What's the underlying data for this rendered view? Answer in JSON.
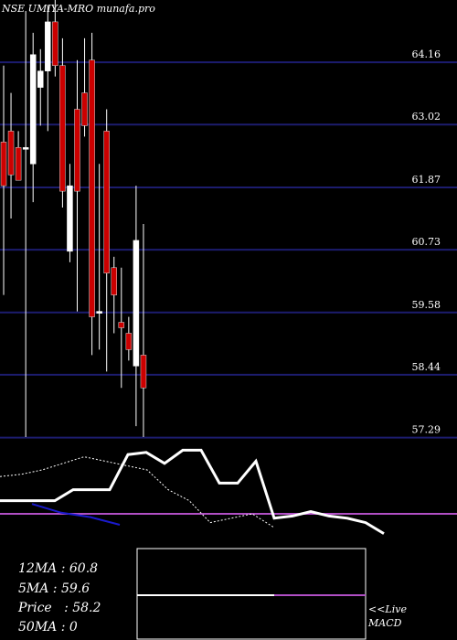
{
  "header": {
    "title": "NSE UMIYA-MRO munafa.pro"
  },
  "colors": {
    "background": "#000000",
    "gridline": "#1c1c6e",
    "bear_candle": "#cc0000",
    "bull_candle": "#ffffff",
    "wick": "#ffffff",
    "macd_line": "#ffffff",
    "signal_line": "#ffffff",
    "short_ma_line": "#1a1acc",
    "zero_line": "#b04fc4"
  },
  "indicators": {
    "ma12": "12MA : 60.8",
    "ma5": "5MA : 59.6",
    "price": "Price   : 58.2",
    "ma50": "50MA : 0"
  },
  "panel": {
    "live_label": "<<Live",
    "macd_label": "MACD"
  },
  "chart_data": {
    "type": "candlestick",
    "title": "NSE UMIYA-MRO munafa.pro",
    "y_ticks": [
      64.16,
      63.02,
      61.87,
      60.73,
      59.58,
      58.44,
      57.29
    ],
    "ylim": [
      57.2,
      65.3
    ],
    "candles": [
      {
        "open": 62.7,
        "high": 64.1,
        "low": 59.9,
        "close": 61.9
      },
      {
        "open": 62.9,
        "high": 63.6,
        "low": 61.3,
        "close": 62.1
      },
      {
        "open": 62.6,
        "high": 62.9,
        "low": 62.0,
        "close": 62.0
      },
      {
        "open": 62.6,
        "high": 65.1,
        "low": 57.3,
        "close": 62.6
      },
      {
        "open": 62.3,
        "high": 64.7,
        "low": 61.6,
        "close": 64.3
      },
      {
        "open": 63.7,
        "high": 64.4,
        "low": 63.0,
        "close": 64.0
      },
      {
        "open": 64.0,
        "high": 65.2,
        "low": 62.9,
        "close": 64.9
      },
      {
        "open": 64.9,
        "high": 65.3,
        "low": 63.9,
        "close": 64.1
      },
      {
        "open": 64.1,
        "high": 64.6,
        "low": 61.5,
        "close": 61.8
      },
      {
        "open": 60.7,
        "high": 62.3,
        "low": 60.5,
        "close": 61.9
      },
      {
        "open": 63.3,
        "high": 64.2,
        "low": 59.6,
        "close": 61.8
      },
      {
        "open": 63.6,
        "high": 64.6,
        "low": 62.8,
        "close": 63.0
      },
      {
        "open": 64.2,
        "high": 64.7,
        "low": 58.8,
        "close": 59.5
      },
      {
        "open": 59.6,
        "high": 62.3,
        "low": 58.9,
        "close": 59.6
      },
      {
        "open": 62.9,
        "high": 63.3,
        "low": 58.5,
        "close": 60.3
      },
      {
        "open": 60.4,
        "high": 60.6,
        "low": 59.2,
        "close": 59.9
      },
      {
        "open": 59.4,
        "high": 60.4,
        "low": 58.2,
        "close": 59.3
      },
      {
        "open": 59.2,
        "high": 59.5,
        "low": 58.7,
        "close": 58.9
      },
      {
        "open": 58.6,
        "high": 61.9,
        "low": 57.5,
        "close": 60.9
      },
      {
        "open": 58.8,
        "high": 61.2,
        "low": 57.3,
        "close": 58.2
      }
    ],
    "macd": [
      6,
      6,
      6,
      6,
      11,
      11,
      11,
      27,
      28,
      23,
      29,
      29,
      14,
      14,
      24,
      -2,
      -1,
      1,
      -1,
      -2,
      -4,
      -9
    ],
    "signal": [
      17,
      18,
      20,
      23,
      26,
      24,
      22,
      20,
      11,
      6,
      -4,
      -2,
      0,
      -6
    ],
    "short_ma": [
      4.5,
      0.5,
      -1.5,
      -5
    ],
    "zero_level": 0
  }
}
